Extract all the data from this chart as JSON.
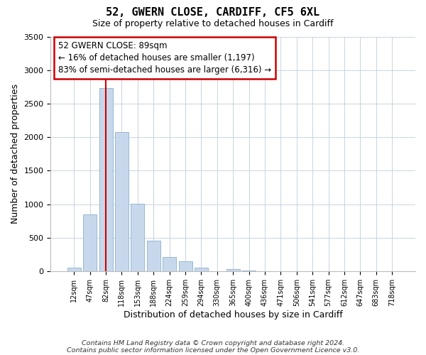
{
  "title": "52, GWERN CLOSE, CARDIFF, CF5 6XL",
  "subtitle": "Size of property relative to detached houses in Cardiff",
  "xlabel": "Distribution of detached houses by size in Cardiff",
  "ylabel": "Number of detached properties",
  "bar_color": "#c8d8ec",
  "bar_edgecolor": "#8aafd0",
  "vline_color": "#cc0000",
  "annotation_text": "52 GWERN CLOSE: 89sqm\n← 16% of detached houses are smaller (1,197)\n83% of semi-detached houses are larger (6,316) →",
  "categories": [
    "12sqm",
    "47sqm",
    "82sqm",
    "118sqm",
    "153sqm",
    "188sqm",
    "224sqm",
    "259sqm",
    "294sqm",
    "330sqm",
    "365sqm",
    "400sqm",
    "436sqm",
    "471sqm",
    "506sqm",
    "541sqm",
    "577sqm",
    "612sqm",
    "647sqm",
    "683sqm",
    "718sqm"
  ],
  "values": [
    55,
    850,
    2730,
    2080,
    1010,
    455,
    215,
    148,
    55,
    5,
    30,
    10,
    5,
    2,
    0,
    0,
    0,
    0,
    0,
    0,
    0
  ],
  "ylim": [
    0,
    3500
  ],
  "yticks": [
    0,
    500,
    1000,
    1500,
    2000,
    2500,
    3000,
    3500
  ],
  "footer1": "Contains HM Land Registry data © Crown copyright and database right 2024.",
  "footer2": "Contains public sector information licensed under the Open Government Licence v3.0.",
  "figsize": [
    6.0,
    5.0
  ],
  "dpi": 100
}
